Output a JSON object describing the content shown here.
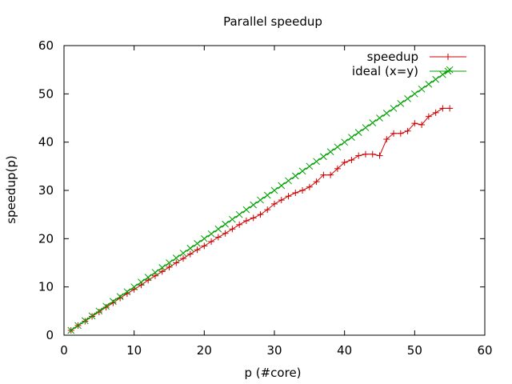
{
  "chart_data": {
    "type": "line",
    "title": "Parallel speedup",
    "xlabel": "p (#core)",
    "ylabel": "speedup(p)",
    "xlim": [
      0,
      60
    ],
    "ylim": [
      0,
      60
    ],
    "x_ticks": [
      0,
      10,
      20,
      30,
      40,
      50,
      60
    ],
    "y_ticks": [
      0,
      10,
      20,
      30,
      40,
      50,
      60
    ],
    "grid": false,
    "legend_position": "top-right",
    "series": [
      {
        "name": "speedup",
        "color": "#cc0000",
        "marker": "plus",
        "x": [
          1,
          2,
          3,
          4,
          5,
          6,
          7,
          8,
          9,
          10,
          11,
          12,
          13,
          14,
          15,
          16,
          17,
          18,
          19,
          20,
          21,
          22,
          23,
          24,
          25,
          26,
          27,
          28,
          29,
          30,
          31,
          32,
          33,
          34,
          35,
          36,
          37,
          38,
          39,
          40,
          41,
          42,
          43,
          44,
          45,
          46,
          47,
          48,
          49,
          50,
          51,
          52,
          53,
          54,
          55
        ],
        "y": [
          1.0,
          2.0,
          2.9,
          3.9,
          4.8,
          5.8,
          6.7,
          7.7,
          8.6,
          9.5,
          10.4,
          11.4,
          12.3,
          13.2,
          14.1,
          15.0,
          15.9,
          16.8,
          17.7,
          18.5,
          19.4,
          20.3,
          21.1,
          22.0,
          22.9,
          23.7,
          24.3,
          25.0,
          26.0,
          27.2,
          28.0,
          28.8,
          29.5,
          30.0,
          30.7,
          31.8,
          33.2,
          33.2,
          34.5,
          35.8,
          36.3,
          37.2,
          37.5,
          37.5,
          37.2,
          40.6,
          41.8,
          41.8,
          42.3,
          43.9,
          43.6,
          45.3,
          46.1,
          47.0,
          47.0
        ]
      },
      {
        "name": "ideal (x=y)",
        "color": "#00a000",
        "marker": "x",
        "x": [
          1,
          2,
          3,
          4,
          5,
          6,
          7,
          8,
          9,
          10,
          11,
          12,
          13,
          14,
          15,
          16,
          17,
          18,
          19,
          20,
          21,
          22,
          23,
          24,
          25,
          26,
          27,
          28,
          29,
          30,
          31,
          32,
          33,
          34,
          35,
          36,
          37,
          38,
          39,
          40,
          41,
          42,
          43,
          44,
          45,
          46,
          47,
          48,
          49,
          50,
          51,
          52,
          53,
          54,
          55
        ],
        "y": [
          1,
          2,
          3,
          4,
          5,
          6,
          7,
          8,
          9,
          10,
          11,
          12,
          13,
          14,
          15,
          16,
          17,
          18,
          19,
          20,
          21,
          22,
          23,
          24,
          25,
          26,
          27,
          28,
          29,
          30,
          31,
          32,
          33,
          34,
          35,
          36,
          37,
          38,
          39,
          40,
          41,
          42,
          43,
          44,
          45,
          46,
          47,
          48,
          49,
          50,
          51,
          52,
          53,
          54,
          55
        ]
      }
    ]
  }
}
